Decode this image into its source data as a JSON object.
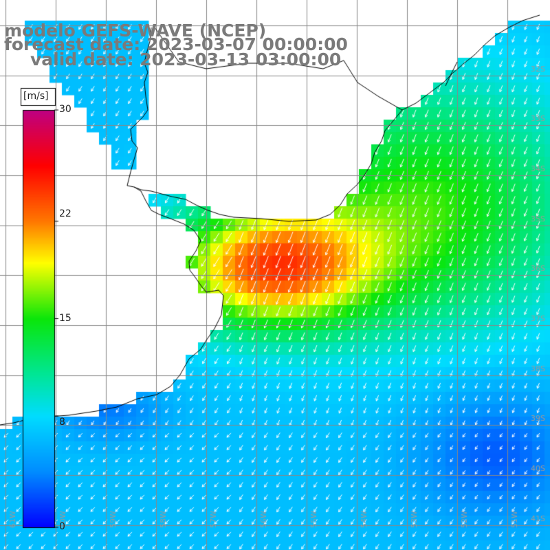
{
  "titles": {
    "line1": "modelo GEFS-WAVE (NCEP)",
    "line2": "forecast date: 2023-03-07 00:00:00",
    "line3": "valid date: 2023-03-13 03:00:00"
  },
  "colorbar": {
    "unit": "[m/s]",
    "ticks": [
      {
        "label": "30",
        "value": 30
      },
      {
        "label": "22",
        "value": 22
      },
      {
        "label": "15",
        "value": 15
      },
      {
        "label": "8",
        "value": 8
      },
      {
        "label": "0",
        "value": 0
      }
    ],
    "range": [
      0,
      30
    ]
  },
  "grid": {
    "lat_labels": [
      "32S",
      "33S",
      "34S",
      "35S",
      "36S",
      "37S",
      "38S",
      "39S",
      "40S",
      "41S"
    ],
    "lon_labels": [
      "61W",
      "60W",
      "59W",
      "58W",
      "57W",
      "56W",
      "55W",
      "54W",
      "53W",
      "52W",
      "51W"
    ]
  },
  "colors": {
    "land": "#ffffff",
    "grid": "#888888",
    "coast": "#000000",
    "arrows": "#ffffff",
    "title": "#7a7a7a"
  }
}
